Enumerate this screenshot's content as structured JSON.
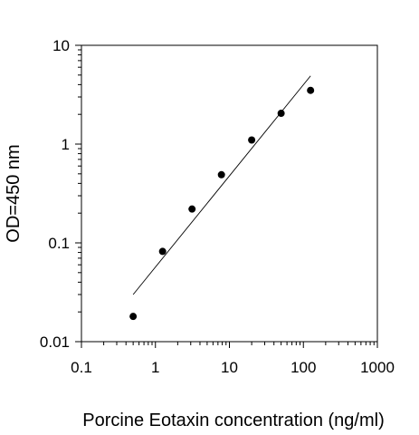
{
  "chart_data": {
    "type": "scatter",
    "title": "",
    "xlabel": "Porcine Eotaxin concentration (ng/ml)",
    "ylabel": "OD=450 nm",
    "xscale": "log",
    "yscale": "log",
    "xlim": [
      0.1,
      1000
    ],
    "ylim": [
      0.01,
      10
    ],
    "x_ticks": [
      "0.1",
      "1",
      "10",
      "100",
      "1000"
    ],
    "y_ticks": [
      "0.01",
      "0.1",
      "1",
      "10"
    ],
    "grid": false,
    "legend": "none",
    "point_color": "#000000",
    "line_color": "#000000",
    "series": [
      {
        "x": [
          0.5,
          1.25,
          3.125,
          7.8,
          20,
          50,
          125
        ],
        "y": [
          0.018,
          0.082,
          0.22,
          0.49,
          1.1,
          2.05,
          3.5
        ]
      }
    ],
    "fit_line": {
      "x": [
        0.5,
        125
      ],
      "y": [
        0.03,
        4.9
      ]
    }
  }
}
